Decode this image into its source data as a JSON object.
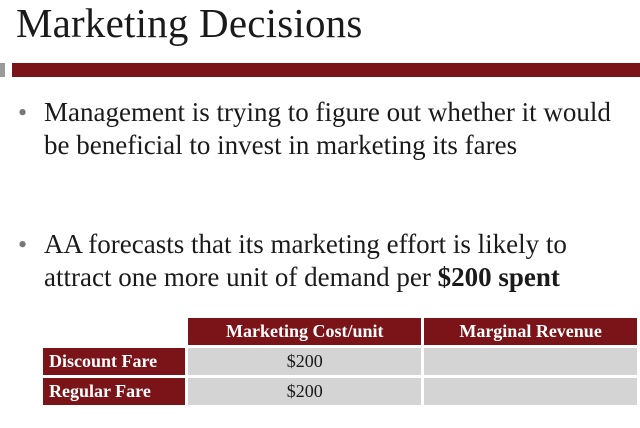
{
  "slide": {
    "title": "Marketing Decisions",
    "bullets": [
      {
        "text": "Management is trying to figure out whether it would be beneficial to invest in marketing its fares"
      },
      {
        "text": "AA forecasts that its marketing effort is likely to attract one more unit of demand per ",
        "bold": "$200 spent"
      }
    ],
    "bullet_glyph": "•"
  },
  "table": {
    "headers": [
      "Marketing Cost/unit",
      "Marginal Revenue"
    ],
    "rows": [
      {
        "label": "Discount Fare",
        "cost": "$200",
        "revenue": ""
      },
      {
        "label": "Regular Fare",
        "cost": "$200",
        "revenue": ""
      }
    ]
  },
  "colors": {
    "accent": "#7b1418",
    "cell_fill": "#d4d4d4",
    "side_marker": "#9a9a9a"
  }
}
